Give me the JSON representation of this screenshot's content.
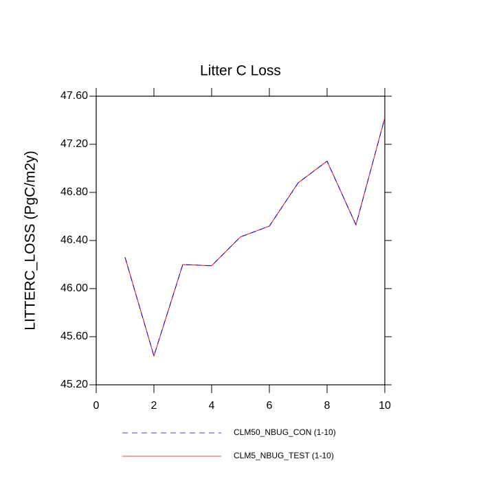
{
  "chart_data": {
    "type": "line",
    "title": "Litter C Loss",
    "y_label": "LITTERC_LOSS  (PgC/m2y)",
    "x": [
      1,
      2,
      3,
      4,
      5,
      6,
      7,
      8,
      9,
      10
    ],
    "series": [
      {
        "name": "CLM50_NBUG_CON (1-10)",
        "color": "#0000ff",
        "dash": true,
        "values": [
          46.26,
          45.44,
          46.2,
          46.19,
          46.43,
          46.52,
          46.88,
          47.06,
          46.53,
          47.42
        ]
      },
      {
        "name": "CLM5_NBUG_TEST (1-10)",
        "color": "#ff0000",
        "dash": false,
        "values": [
          46.26,
          45.44,
          46.2,
          46.19,
          46.43,
          46.52,
          46.88,
          47.06,
          46.53,
          47.42
        ]
      }
    ],
    "xlim": [
      0,
      10
    ],
    "xticks": [
      0,
      2,
      4,
      6,
      8,
      10
    ],
    "ylim": [
      45.2,
      47.6
    ],
    "yticks": [
      {
        "value": 45.2,
        "label": "45.20"
      },
      {
        "value": 45.6,
        "label": "45.60"
      },
      {
        "value": 46.0,
        "label": "46.00"
      },
      {
        "value": 46.4,
        "label": "46.40"
      },
      {
        "value": 46.8,
        "label": "46.80"
      },
      {
        "value": 47.2,
        "label": "47.20"
      },
      {
        "value": 47.6,
        "label": "47.60"
      }
    ]
  }
}
